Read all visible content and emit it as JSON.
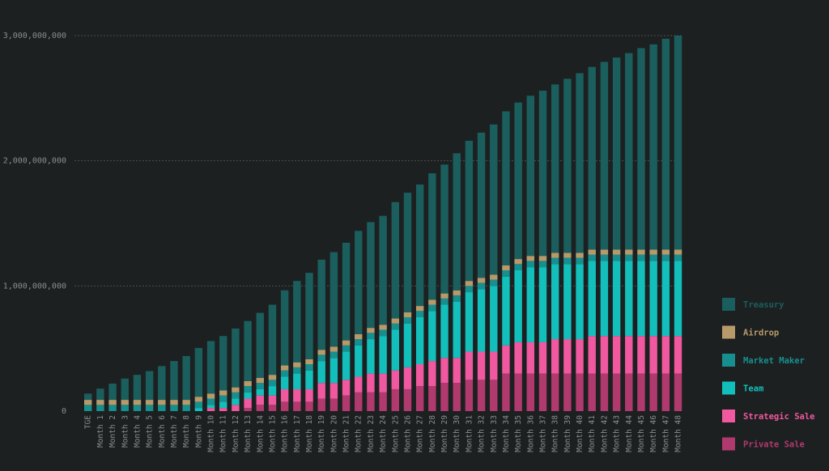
{
  "chart_data": {
    "type": "bar",
    "stacked": true,
    "title": "",
    "xlabel": "",
    "ylabel": "",
    "ylim": [
      0,
      3000000000
    ],
    "yticks": [
      0,
      1000000000,
      2000000000,
      3000000000
    ],
    "ytick_labels": [
      "0",
      "1,000,000,000",
      "2,000,000,000",
      "3,000,000,000"
    ],
    "grid": true,
    "legend_position": "bottom-right",
    "categories": [
      "TGE",
      "Month 1",
      "Month 2",
      "Month 3",
      "Month 4",
      "Month 5",
      "Month 6",
      "Month 7",
      "Month 8",
      "Month 9",
      "Month 10",
      "Month 11",
      "Month 12",
      "Month 13",
      "Month 14",
      "Month 15",
      "Month 16",
      "Month 17",
      "Month 18",
      "Month 19",
      "Month 20",
      "Month 21",
      "Month 22",
      "Month 23",
      "Month 24",
      "Month 25",
      "Month 26",
      "Month 27",
      "Month 28",
      "Month 29",
      "Month 30",
      "Month 31",
      "Month 32",
      "Month 33",
      "Month 34",
      "Month 35",
      "Month 36",
      "Month 37",
      "Month 38",
      "Month 39",
      "Month 40",
      "Month 41",
      "Month 42",
      "Month 43",
      "Month 44",
      "Month 45",
      "Month 46",
      "Month 47",
      "Month 48"
    ],
    "series": [
      {
        "name": "Private Sale",
        "color": "#b03a6e",
        "values": [
          0,
          0,
          0,
          0,
          0,
          0,
          0,
          0,
          0,
          0,
          0,
          0,
          0,
          25000000,
          50000000,
          50000000,
          75000000,
          75000000,
          75000000,
          100000000,
          100000000,
          125000000,
          150000000,
          150000000,
          150000000,
          175000000,
          175000000,
          200000000,
          200000000,
          225000000,
          225000000,
          250000000,
          250000000,
          250000000,
          300000000,
          300000000,
          300000000,
          300000000,
          300000000,
          300000000,
          300000000,
          300000000,
          300000000,
          300000000,
          300000000,
          300000000,
          300000000,
          300000000,
          300000000
        ]
      },
      {
        "name": "Strategic Sale",
        "color": "#f0589f",
        "values": [
          0,
          0,
          0,
          0,
          0,
          0,
          0,
          0,
          0,
          0,
          25000000,
          25000000,
          50000000,
          75000000,
          75000000,
          75000000,
          100000000,
          100000000,
          100000000,
          125000000,
          125000000,
          125000000,
          125000000,
          150000000,
          150000000,
          150000000,
          175000000,
          175000000,
          200000000,
          200000000,
          200000000,
          225000000,
          225000000,
          225000000,
          225000000,
          250000000,
          250000000,
          250000000,
          275000000,
          275000000,
          275000000,
          300000000,
          300000000,
          300000000,
          300000000,
          300000000,
          300000000,
          300000000,
          300000000
        ]
      },
      {
        "name": "Team",
        "color": "#12bfbb",
        "values": [
          0,
          0,
          0,
          0,
          0,
          0,
          0,
          0,
          0,
          25000000,
          25000000,
          50000000,
          50000000,
          50000000,
          50000000,
          75000000,
          100000000,
          125000000,
          150000000,
          175000000,
          200000000,
          225000000,
          250000000,
          275000000,
          300000000,
          325000000,
          350000000,
          375000000,
          400000000,
          425000000,
          450000000,
          475000000,
          500000000,
          525000000,
          550000000,
          575000000,
          600000000,
          600000000,
          600000000,
          600000000,
          600000000,
          600000000,
          600000000,
          600000000,
          600000000,
          600000000,
          600000000,
          600000000,
          600000000
        ]
      },
      {
        "name": "Market Maker",
        "color": "#178f8f",
        "values": [
          50000000,
          50000000,
          50000000,
          50000000,
          50000000,
          50000000,
          50000000,
          50000000,
          50000000,
          50000000,
          50000000,
          50000000,
          50000000,
          50000000,
          50000000,
          50000000,
          50000000,
          50000000,
          50000000,
          50000000,
          50000000,
          50000000,
          50000000,
          50000000,
          50000000,
          50000000,
          50000000,
          50000000,
          50000000,
          50000000,
          50000000,
          50000000,
          50000000,
          50000000,
          50000000,
          50000000,
          50000000,
          50000000,
          50000000,
          50000000,
          50000000,
          50000000,
          50000000,
          50000000,
          50000000,
          50000000,
          50000000,
          50000000,
          50000000
        ]
      },
      {
        "name": "Airdrop",
        "color": "#b89a6a",
        "values": [
          40000000,
          40000000,
          40000000,
          40000000,
          40000000,
          40000000,
          40000000,
          40000000,
          40000000,
          40000000,
          40000000,
          40000000,
          40000000,
          40000000,
          40000000,
          40000000,
          40000000,
          40000000,
          40000000,
          40000000,
          40000000,
          40000000,
          40000000,
          40000000,
          40000000,
          40000000,
          40000000,
          40000000,
          40000000,
          40000000,
          40000000,
          40000000,
          40000000,
          40000000,
          40000000,
          40000000,
          40000000,
          40000000,
          40000000,
          40000000,
          40000000,
          40000000,
          40000000,
          40000000,
          40000000,
          40000000,
          40000000,
          40000000,
          40000000
        ]
      },
      {
        "name": "Treasury",
        "color": "#1a5e5d",
        "values": [
          50000000,
          90000000,
          130000000,
          170000000,
          200000000,
          230000000,
          270000000,
          310000000,
          350000000,
          390000000,
          420000000,
          435000000,
          470000000,
          480000000,
          520000000,
          560000000,
          600000000,
          650000000,
          690000000,
          720000000,
          755000000,
          780000000,
          825000000,
          845000000,
          870000000,
          930000000,
          955000000,
          970000000,
          1010000000,
          1030000000,
          1095000000,
          1120000000,
          1160000000,
          1200000000,
          1230000000,
          1250000000,
          1280000000,
          1320000000,
          1345000000,
          1390000000,
          1435000000,
          1460000000,
          1500000000,
          1535000000,
          1570000000,
          1610000000,
          1640000000,
          1685000000,
          1710000000
        ]
      }
    ]
  }
}
